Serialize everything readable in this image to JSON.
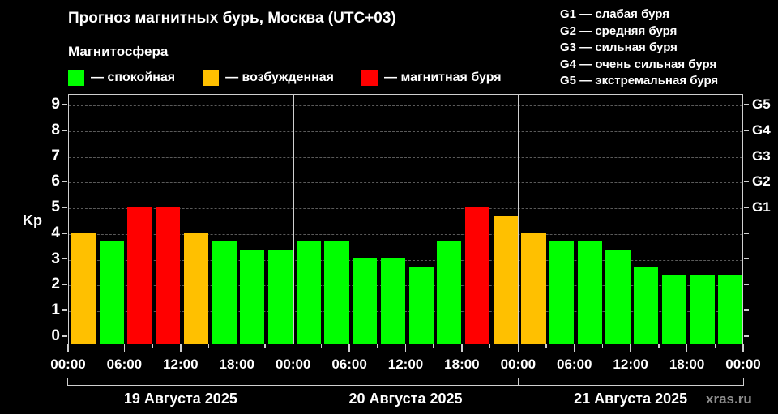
{
  "header": {
    "title": "Прогноз магнитных бурь, Москва (UTC+03)",
    "legend_title": "Магнитосфера",
    "legend": [
      {
        "label": "— спокойная",
        "color": "#00FF00"
      },
      {
        "label": "— возбужденная",
        "color": "#FFC000"
      },
      {
        "label": "— магнитная буря",
        "color": "#FF0000"
      }
    ],
    "storm_levels": [
      "G1 — слабая буря",
      "G2 — средняя буря",
      "G3 — сильная буря",
      "G4 — очень сильная буря",
      "G5 — экстремальная буря"
    ]
  },
  "watermark": "xras.ru",
  "chart_data": {
    "type": "bar",
    "title": "Прогноз магнитных бурь, Москва (UTC+03)",
    "xlabel": "",
    "ylabel": "Kp",
    "ylim": [
      0,
      9
    ],
    "y_ticks": [
      "0",
      "1",
      "2",
      "3",
      "4",
      "5",
      "6",
      "7",
      "8",
      "9"
    ],
    "y2_ticks": [
      {
        "value": 5,
        "label": "G1"
      },
      {
        "value": 6,
        "label": "G2"
      },
      {
        "value": 7,
        "label": "G3"
      },
      {
        "value": 8,
        "label": "G4"
      },
      {
        "value": 9,
        "label": "G5"
      }
    ],
    "grid": true,
    "x_tick_labels": [
      "00:00",
      "06:00",
      "12:00",
      "18:00",
      "00:00",
      "06:00",
      "12:00",
      "18:00",
      "00:00",
      "06:00",
      "12:00",
      "18:00",
      "00:00"
    ],
    "days": [
      "19 Августа 2025",
      "20 Августа 2025",
      "21 Августа 2025"
    ],
    "categories": [
      "19.08 00:00",
      "19.08 03:00",
      "19.08 06:00",
      "19.08 09:00",
      "19.08 12:00",
      "19.08 15:00",
      "19.08 18:00",
      "19.08 21:00",
      "20.08 00:00",
      "20.08 03:00",
      "20.08 06:00",
      "20.08 09:00",
      "20.08 12:00",
      "20.08 15:00",
      "20.08 18:00",
      "20.08 21:00",
      "21.08 00:00",
      "21.08 03:00",
      "21.08 06:00",
      "21.08 09:00",
      "21.08 12:00",
      "21.08 15:00",
      "21.08 18:00",
      "21.08 21:00"
    ],
    "values": [
      4.0,
      3.67,
      5.0,
      5.0,
      4.0,
      3.67,
      3.33,
      3.33,
      3.67,
      3.67,
      3.0,
      3.0,
      2.67,
      3.67,
      5.0,
      4.67,
      4.0,
      3.67,
      3.67,
      3.33,
      2.67,
      2.33,
      2.33,
      2.33
    ],
    "status": [
      "возбужденная",
      "спокойная",
      "магнитная буря",
      "магнитная буря",
      "возбужденная",
      "спокойная",
      "спокойная",
      "спокойная",
      "спокойная",
      "спокойная",
      "спокойная",
      "спокойная",
      "спокойная",
      "спокойная",
      "магнитная буря",
      "возбужденная",
      "возбужденная",
      "спокойная",
      "спокойная",
      "спокойная",
      "спокойная",
      "спокойная",
      "спокойная",
      "спокойная"
    ],
    "colors": {
      "спокойная": "#00FF00",
      "возбужденная": "#FFC000",
      "магнитная буря": "#FF0000"
    }
  }
}
